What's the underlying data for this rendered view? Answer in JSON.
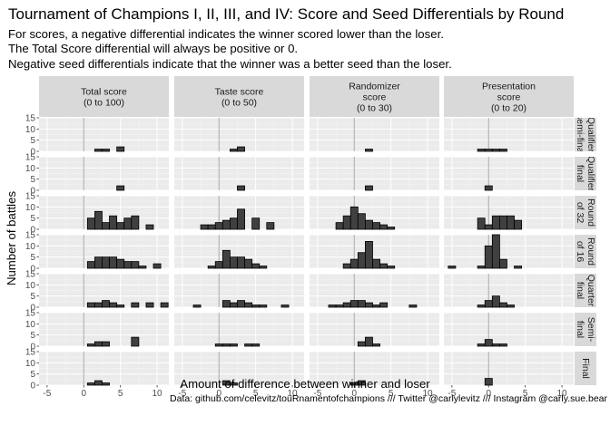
{
  "chart_data": {
    "type": "bar",
    "title": "Tournament of Champions I, II, III, and IV: Score and Seed Differentials by Round",
    "subtitle_lines": [
      "For scores, a negative differential indicates the winner scored lower than the loser.",
      "The Total Score differential will always be positive or 0.",
      "Negative seed differentials indicate that the winner was a better seed than the loser."
    ],
    "xlabel": "Amount of difference between winner and loser",
    "ylabel": "Number of battles",
    "caption": "Data: github.com/celevitz/touRnamentofchampions /// Twitter @carlylevitz /// Instagram @carly.sue.bear",
    "x_ticks": [
      -5,
      0,
      5,
      10
    ],
    "y_ticks": [
      0,
      5,
      10,
      15
    ],
    "xlim": [
      -6.1,
      11.6
    ],
    "ylim": [
      0,
      15
    ],
    "bin_width": 1,
    "grid": true,
    "columns": [
      {
        "label_lines": [
          "Total score",
          "(0 to 100)"
        ]
      },
      {
        "label_lines": [
          "Taste score",
          "(0 to 50)"
        ]
      },
      {
        "label_lines": [
          "Randomizer",
          "score",
          "(0 to 30)"
        ]
      },
      {
        "label_lines": [
          "Presentation",
          "score",
          "(0 to 20)"
        ]
      }
    ],
    "rows": [
      {
        "label_lines": [
          "Qualifier",
          "semi-final"
        ]
      },
      {
        "label_lines": [
          "Qualifier",
          "final"
        ]
      },
      {
        "label_lines": [
          "Round",
          "of 32"
        ]
      },
      {
        "label_lines": [
          "Round",
          "of 16"
        ]
      },
      {
        "label_lines": [
          "Quarter",
          "final"
        ]
      },
      {
        "label_lines": [
          "Semi-",
          "final"
        ]
      },
      {
        "label_lines": [
          "Final"
        ]
      }
    ],
    "panels": [
      [
        {
          "bins": [
            {
              "x": 2,
              "count": 1
            },
            {
              "x": 3,
              "count": 1
            },
            {
              "x": 5,
              "count": 2
            }
          ]
        },
        {
          "bins": [
            {
              "x": 2,
              "count": 1
            },
            {
              "x": 3,
              "count": 2
            }
          ]
        },
        {
          "bins": [
            {
              "x": 2,
              "count": 1
            }
          ]
        },
        {
          "bins": [
            {
              "x": -1,
              "count": 1
            },
            {
              "x": 0,
              "count": 1
            },
            {
              "x": 1,
              "count": 1
            },
            {
              "x": 2,
              "count": 1
            }
          ]
        }
      ],
      [
        {
          "bins": [
            {
              "x": 5,
              "count": 2
            }
          ]
        },
        {
          "bins": [
            {
              "x": 3,
              "count": 2
            }
          ]
        },
        {
          "bins": [
            {
              "x": 2,
              "count": 2
            }
          ]
        },
        {
          "bins": [
            {
              "x": 0,
              "count": 2
            }
          ]
        }
      ],
      [
        {
          "bins": [
            {
              "x": 1,
              "count": 5
            },
            {
              "x": 2,
              "count": 8
            },
            {
              "x": 3,
              "count": 3
            },
            {
              "x": 4,
              "count": 6
            },
            {
              "x": 5,
              "count": 3
            },
            {
              "x": 6,
              "count": 5
            },
            {
              "x": 7,
              "count": 6
            },
            {
              "x": 9,
              "count": 2
            }
          ]
        },
        {
          "bins": [
            {
              "x": -2,
              "count": 2
            },
            {
              "x": -1,
              "count": 2
            },
            {
              "x": 0,
              "count": 3
            },
            {
              "x": 1,
              "count": 4
            },
            {
              "x": 2,
              "count": 5
            },
            {
              "x": 3,
              "count": 9
            },
            {
              "x": 5,
              "count": 5
            },
            {
              "x": 7,
              "count": 3
            }
          ]
        },
        {
          "bins": [
            {
              "x": -2,
              "count": 3
            },
            {
              "x": -1,
              "count": 6
            },
            {
              "x": 0,
              "count": 10
            },
            {
              "x": 1,
              "count": 7
            },
            {
              "x": 2,
              "count": 4
            },
            {
              "x": 3,
              "count": 3
            },
            {
              "x": 4,
              "count": 2
            },
            {
              "x": 5,
              "count": 1
            }
          ]
        },
        {
          "bins": [
            {
              "x": -1,
              "count": 5
            },
            {
              "x": 0,
              "count": 2
            },
            {
              "x": 1,
              "count": 6
            },
            {
              "x": 2,
              "count": 6
            },
            {
              "x": 3,
              "count": 6
            },
            {
              "x": 4,
              "count": 4
            }
          ]
        }
      ],
      [
        {
          "bins": [
            {
              "x": 1,
              "count": 3
            },
            {
              "x": 2,
              "count": 5
            },
            {
              "x": 3,
              "count": 5
            },
            {
              "x": 4,
              "count": 5
            },
            {
              "x": 5,
              "count": 4
            },
            {
              "x": 6,
              "count": 3
            },
            {
              "x": 7,
              "count": 3
            },
            {
              "x": 8,
              "count": 1
            },
            {
              "x": 10,
              "count": 2
            }
          ]
        },
        {
          "bins": [
            {
              "x": -1,
              "count": 1
            },
            {
              "x": 0,
              "count": 3
            },
            {
              "x": 1,
              "count": 8
            },
            {
              "x": 2,
              "count": 5
            },
            {
              "x": 3,
              "count": 5
            },
            {
              "x": 4,
              "count": 4
            },
            {
              "x": 5,
              "count": 2
            },
            {
              "x": 6,
              "count": 1
            }
          ]
        },
        {
          "bins": [
            {
              "x": -1,
              "count": 2
            },
            {
              "x": 0,
              "count": 4
            },
            {
              "x": 1,
              "count": 7
            },
            {
              "x": 2,
              "count": 12
            },
            {
              "x": 3,
              "count": 4
            },
            {
              "x": 4,
              "count": 2
            },
            {
              "x": 5,
              "count": 1
            }
          ]
        },
        {
          "bins": [
            {
              "x": -5,
              "count": 1
            },
            {
              "x": -1,
              "count": 1
            },
            {
              "x": 0,
              "count": 10
            },
            {
              "x": 1,
              "count": 15
            },
            {
              "x": 2,
              "count": 4
            },
            {
              "x": 4,
              "count": 1
            }
          ]
        }
      ],
      [
        {
          "bins": [
            {
              "x": 1,
              "count": 2
            },
            {
              "x": 2,
              "count": 2
            },
            {
              "x": 3,
              "count": 3
            },
            {
              "x": 4,
              "count": 2
            },
            {
              "x": 5,
              "count": 1
            },
            {
              "x": 7,
              "count": 2
            },
            {
              "x": 9,
              "count": 2
            },
            {
              "x": 11,
              "count": 2
            }
          ]
        },
        {
          "bins": [
            {
              "x": -3,
              "count": 1
            },
            {
              "x": 1,
              "count": 3
            },
            {
              "x": 2,
              "count": 2
            },
            {
              "x": 3,
              "count": 3
            },
            {
              "x": 4,
              "count": 2
            },
            {
              "x": 5,
              "count": 1
            },
            {
              "x": 6,
              "count": 1
            },
            {
              "x": 9,
              "count": 1
            }
          ]
        },
        {
          "bins": [
            {
              "x": -3,
              "count": 1
            },
            {
              "x": -2,
              "count": 1
            },
            {
              "x": -1,
              "count": 2
            },
            {
              "x": 0,
              "count": 3
            },
            {
              "x": 1,
              "count": 3
            },
            {
              "x": 2,
              "count": 2
            },
            {
              "x": 3,
              "count": 1
            },
            {
              "x": 4,
              "count": 2
            },
            {
              "x": 8,
              "count": 1
            }
          ]
        },
        {
          "bins": [
            {
              "x": -1,
              "count": 1
            },
            {
              "x": 0,
              "count": 3
            },
            {
              "x": 1,
              "count": 5
            },
            {
              "x": 2,
              "count": 2
            },
            {
              "x": 3,
              "count": 1
            }
          ]
        }
      ],
      [
        {
          "bins": [
            {
              "x": 1,
              "count": 1
            },
            {
              "x": 2,
              "count": 2
            },
            {
              "x": 3,
              "count": 2
            },
            {
              "x": 7,
              "count": 4
            }
          ]
        },
        {
          "bins": [
            {
              "x": 0,
              "count": 1
            },
            {
              "x": 1,
              "count": 1
            },
            {
              "x": 2,
              "count": 1
            },
            {
              "x": 4,
              "count": 1
            },
            {
              "x": 5,
              "count": 1
            }
          ]
        },
        {
          "bins": [
            {
              "x": 1,
              "count": 2
            },
            {
              "x": 2,
              "count": 4
            },
            {
              "x": 3,
              "count": 1
            }
          ]
        },
        {
          "bins": [
            {
              "x": -1,
              "count": 1
            },
            {
              "x": 0,
              "count": 3
            },
            {
              "x": 1,
              "count": 1
            },
            {
              "x": 2,
              "count": 1
            }
          ]
        }
      ],
      [
        {
          "bins": [
            {
              "x": 1,
              "count": 1
            },
            {
              "x": 2,
              "count": 2
            },
            {
              "x": 3,
              "count": 1
            }
          ]
        },
        {
          "bins": [
            {
              "x": 1,
              "count": 2
            },
            {
              "x": 2,
              "count": 1
            }
          ]
        },
        {
          "bins": [
            {
              "x": 0,
              "count": 1
            },
            {
              "x": 1,
              "count": 2
            }
          ]
        },
        {
          "bins": [
            {
              "x": 0,
              "count": 3
            }
          ]
        }
      ]
    ]
  },
  "colors": {
    "panel_background": "#ebebeb",
    "grid_major": "#ffffff",
    "grid_minor": "#f5f5f5",
    "strip_background": "#d9d9d9",
    "bar_fill": "#404040",
    "bar_stroke": "#000000",
    "zero_line": "#b3b3b3",
    "tick_text": "#4d4d4d"
  }
}
